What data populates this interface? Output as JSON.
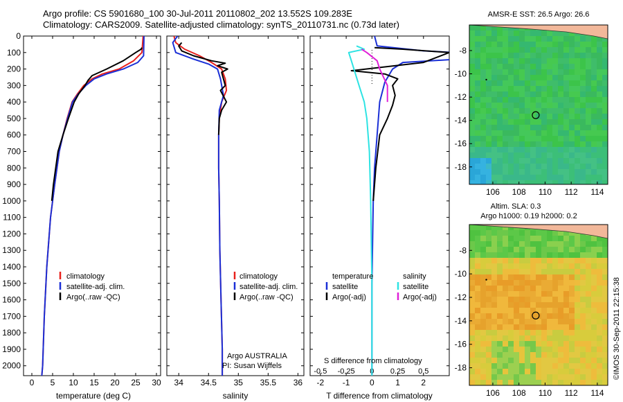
{
  "header": {
    "line1": "Argo profile: CS 5901680_100 30-Jul-2011 20110802_202 13.552S 109.283E",
    "line2": "Climatology: CARS2009. Satellite-adjusted climatology: synTS_20110731.nc (0.73d later)"
  },
  "colors": {
    "climatology": "#e8201c",
    "satellite": "#1a2fd6",
    "argo": "#000000",
    "satellite_salinity": "#2de3e3",
    "argo_salinity_adj": "#e020d8",
    "land": "#f2b89a"
  },
  "chart_data": [
    {
      "type": "line",
      "name": "temperature-profile",
      "xlabel": "temperature (deg C)",
      "xlim": [
        -2,
        31
      ],
      "xticks": [
        0,
        5,
        10,
        15,
        20,
        25,
        30
      ],
      "ylim": [
        2060,
        0
      ],
      "yticks": [
        0,
        100,
        200,
        300,
        400,
        500,
        600,
        700,
        800,
        900,
        1000,
        1100,
        1200,
        1300,
        1400,
        1500,
        1600,
        1700,
        1800,
        1900,
        2000
      ],
      "legend": [
        "climatology",
        "satellite-adj. clim.",
        "Argo(..raw -QC)"
      ],
      "series": [
        {
          "name": "climatology",
          "color_key": "climatology",
          "x": [
            26.8,
            26.5,
            24.5,
            21,
            17,
            14.5,
            12.5,
            11,
            9.7,
            8.5,
            7.5,
            6.6,
            5.5,
            4.5,
            3.6,
            3.0,
            2.6,
            2.4
          ],
          "y": [
            0,
            100,
            150,
            200,
            230,
            260,
            300,
            350,
            400,
            500,
            600,
            700,
            900,
            1100,
            1400,
            1700,
            2000,
            2060
          ]
        },
        {
          "name": "satellite-adj. clim.",
          "color_key": "satellite",
          "x": [
            27.0,
            26.9,
            25.5,
            22,
            18,
            15,
            13,
            11.2,
            9.8,
            8.6,
            7.5,
            6.6,
            5.5,
            4.5,
            3.6,
            3.0,
            2.6,
            2.4
          ],
          "y": [
            0,
            120,
            160,
            200,
            230,
            260,
            300,
            350,
            400,
            500,
            600,
            700,
            900,
            1100,
            1400,
            1700,
            2000,
            2060
          ]
        },
        {
          "name": "Argo(..raw -QC)",
          "color_key": "argo",
          "x": [
            26.5,
            26.3,
            25,
            22,
            18,
            14.5,
            13.5,
            12.8,
            11.3,
            10.2,
            8.8,
            7.5,
            6.3,
            5.2,
            4.8
          ],
          "y": [
            70,
            80,
            100,
            150,
            200,
            240,
            270,
            300,
            350,
            400,
            500,
            600,
            700,
            900,
            1000
          ]
        }
      ]
    },
    {
      "type": "line",
      "name": "salinity-profile",
      "xlabel": "salinity",
      "xlim": [
        33.8,
        36.1
      ],
      "xticks": [
        "34",
        "34.5",
        "35",
        "35.5",
        "36"
      ],
      "ylim": [
        2060,
        0
      ],
      "legend": [
        "climatology",
        "satellite-adj. clim.",
        "Argo(..raw -QC)"
      ],
      "series": [
        {
          "name": "climatology",
          "color_key": "climatology",
          "x": [
            33.92,
            33.95,
            34.1,
            34.35,
            34.55,
            34.72,
            34.78,
            34.8,
            34.72,
            34.68,
            34.67,
            34.67,
            34.68,
            34.69,
            34.71,
            34.73,
            34.73
          ],
          "y": [
            0,
            40,
            80,
            120,
            160,
            200,
            260,
            330,
            400,
            500,
            600,
            800,
            1000,
            1300,
            1600,
            1900,
            2060
          ]
        },
        {
          "name": "satellite-adj. clim.",
          "color_key": "satellite",
          "x": [
            33.98,
            33.9,
            33.95,
            34.25,
            34.5,
            34.65,
            34.7,
            34.75,
            34.68,
            34.67,
            34.67,
            34.68,
            34.69,
            34.71,
            34.73,
            34.73
          ],
          "y": [
            0,
            40,
            100,
            140,
            170,
            200,
            260,
            360,
            450,
            600,
            800,
            1000,
            1300,
            1600,
            1900,
            2060
          ]
        },
        {
          "name": "Argo(..raw -QC)",
          "color_key": "argo",
          "x": [
            34.05,
            34.0,
            34.05,
            34.25,
            34.55,
            34.78,
            34.65,
            34.82,
            34.72,
            34.75,
            34.78,
            34.7,
            34.8,
            34.72,
            34.68,
            34.67
          ],
          "y": [
            40,
            60,
            90,
            120,
            150,
            165,
            180,
            200,
            220,
            260,
            300,
            330,
            400,
            450,
            500,
            600
          ]
        }
      ]
    },
    {
      "type": "line",
      "name": "difference-from-climatology",
      "xlabel": "T difference from climatology",
      "xlim": [
        -2.4,
        3.0
      ],
      "xticks": [
        -2,
        -1,
        0,
        1,
        2
      ],
      "title2": "S difference from climatology",
      "x2ticks": [
        "-0.5",
        "-0.25",
        "0",
        "0.25",
        "0.5"
      ],
      "ylim": [
        2060,
        0
      ],
      "legend_left_title": "temperature",
      "legend_right_title": "salinity",
      "legend": [
        "satellite",
        "Argo(-adj)",
        "satellite",
        "Argo(-adj)"
      ],
      "series": [
        {
          "name": "satellite",
          "color_key": "satellite",
          "x": [
            0.1,
            0.2,
            2,
            4.5,
            4.5,
            1.2,
            0.8,
            0.5,
            0.3,
            0.2,
            0.1,
            0.05,
            0.0,
            0.0
          ],
          "y": [
            0,
            60,
            90,
            110,
            130,
            160,
            200,
            280,
            400,
            600,
            800,
            1000,
            1500,
            2060
          ]
        },
        {
          "name": "Argo(-adj)",
          "color_key": "argo",
          "x": [
            0.1,
            1.2,
            3,
            2,
            -0.8,
            0.5,
            1.0,
            0.8,
            0.9,
            0.8,
            0.6,
            0.3,
            0.15,
            0.05
          ],
          "y": [
            70,
            80,
            100,
            160,
            210,
            230,
            260,
            300,
            360,
            420,
            500,
            600,
            800,
            1000
          ]
        },
        {
          "name": "satellite",
          "color_key": "satellite_salinity",
          "x": [
            -0.6,
            -0.3,
            -0.9,
            -0.8,
            -0.7,
            -0.5,
            -0.3,
            -0.2,
            -0.1,
            -0.05,
            0.0,
            0.0
          ],
          "y": [
            60,
            80,
            100,
            150,
            200,
            300,
            400,
            500,
            700,
            1000,
            1500,
            2060
          ]
        },
        {
          "name": "Argo(-adj)",
          "color_key": "argo_salinity_adj",
          "x": [
            -0.4,
            -0.2,
            0.2,
            0.3,
            0.6,
            0.6
          ],
          "y": [
            80,
            100,
            150,
            200,
            300,
            400
          ]
        }
      ]
    },
    {
      "type": "heatmap",
      "name": "sst-map",
      "title": "AMSR-E SST: 26.5  Argo: 26.6",
      "xlim": [
        104.2,
        114.8
      ],
      "ylim": [
        -19.5,
        -5.8
      ],
      "xticks": [
        106,
        108,
        110,
        112,
        114
      ],
      "yticks": [
        -8,
        -10,
        -12,
        -14,
        -16,
        -18
      ],
      "argo_position": [
        109.283,
        -13.552
      ]
    },
    {
      "type": "heatmap",
      "name": "sla-map",
      "title": "Altim. SLA: 0.3",
      "subtitle": "Argo h1000: 0.19 h2000: 0.2",
      "xlim": [
        104.2,
        114.8
      ],
      "ylim": [
        -19.5,
        -5.8
      ],
      "xticks": [
        106,
        108,
        110,
        112,
        114
      ],
      "yticks": [
        -8,
        -10,
        -12,
        -14,
        -16,
        -18
      ],
      "argo_position": [
        109.283,
        -13.552
      ]
    }
  ],
  "footer": {
    "credit1": "Argo AUSTRALIA",
    "credit2": "PI: Susan Wijffels",
    "watermark": "©IMOS 30-Sep-2011 22:15:38"
  }
}
